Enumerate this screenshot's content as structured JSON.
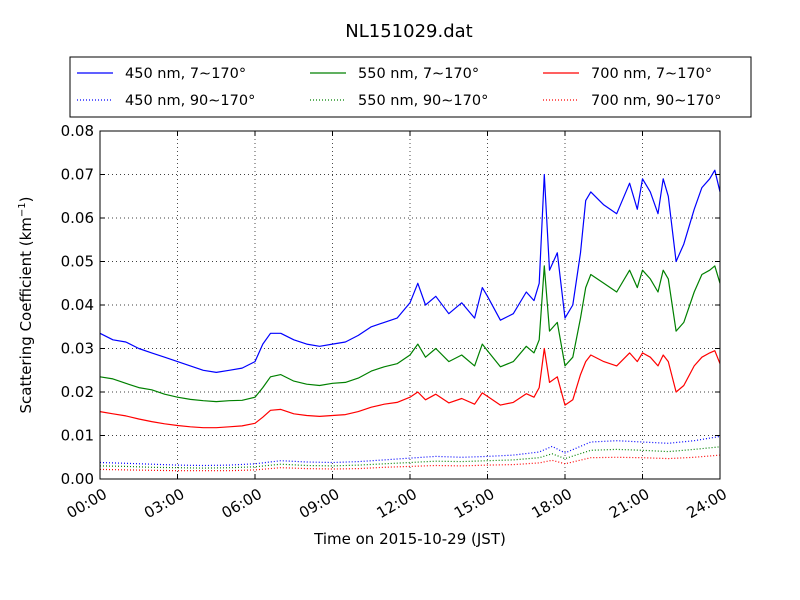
{
  "chart_data": {
    "type": "line",
    "title": "NL151029.dat",
    "xlabel": "Time on 2015-10-29 (JST)",
    "ylabel": "Scattering Coefficient (km",
    "ylabel_superscript": "−1",
    "ylabel_suffix": ")",
    "xlim": [
      0,
      24
    ],
    "ylim": [
      0,
      0.08
    ],
    "x_unit": "hours",
    "x_ticks": [
      0,
      3,
      6,
      9,
      12,
      15,
      18,
      21,
      24
    ],
    "x_tick_labels": [
      "00:00",
      "03:00",
      "06:00",
      "09:00",
      "12:00",
      "15:00",
      "18:00",
      "21:00",
      "24:00"
    ],
    "y_ticks": [
      0,
      0.01,
      0.02,
      0.03,
      0.04,
      0.05,
      0.06,
      0.07,
      0.08
    ],
    "y_tick_labels": [
      "0.00",
      "0.01",
      "0.02",
      "0.03",
      "0.04",
      "0.05",
      "0.06",
      "0.07",
      "0.08"
    ],
    "grid": true,
    "legend_position": "top",
    "series": [
      {
        "name": "450 nm, 7∼170°",
        "color": "#0000ff",
        "style": "solid",
        "x": [
          0,
          0.5,
          1,
          1.5,
          2,
          2.5,
          3,
          3.5,
          4,
          4.5,
          5,
          5.5,
          6,
          6.3,
          6.6,
          7,
          7.5,
          8,
          8.5,
          9,
          9.5,
          10,
          10.5,
          11,
          11.5,
          12,
          12.3,
          12.6,
          13,
          13.5,
          14,
          14.5,
          14.8,
          15,
          15.5,
          16,
          16.5,
          16.8,
          17,
          17.2,
          17.4,
          17.7,
          18,
          18.3,
          18.6,
          18.8,
          19,
          19.5,
          20,
          20.5,
          20.8,
          21,
          21.3,
          21.6,
          21.8,
          22,
          22.3,
          22.6,
          23,
          23.3,
          23.6,
          23.8,
          24
        ],
        "y": [
          0.0335,
          0.032,
          0.0315,
          0.03,
          0.029,
          0.028,
          0.027,
          0.026,
          0.025,
          0.0245,
          0.025,
          0.0255,
          0.027,
          0.031,
          0.0335,
          0.0335,
          0.032,
          0.031,
          0.0305,
          0.031,
          0.0315,
          0.033,
          0.035,
          0.036,
          0.037,
          0.0405,
          0.045,
          0.04,
          0.042,
          0.038,
          0.0405,
          0.037,
          0.044,
          0.042,
          0.0365,
          0.038,
          0.043,
          0.041,
          0.045,
          0.07,
          0.048,
          0.052,
          0.037,
          0.04,
          0.052,
          0.064,
          0.066,
          0.063,
          0.061,
          0.068,
          0.062,
          0.069,
          0.066,
          0.061,
          0.069,
          0.065,
          0.05,
          0.054,
          0.062,
          0.067,
          0.069,
          0.071,
          0.066
        ]
      },
      {
        "name": "550 nm, 7∼170°",
        "color": "#008000",
        "style": "solid",
        "x": [
          0,
          0.5,
          1,
          1.5,
          2,
          2.5,
          3,
          3.5,
          4,
          4.5,
          5,
          5.5,
          6,
          6.3,
          6.6,
          7,
          7.5,
          8,
          8.5,
          9,
          9.5,
          10,
          10.5,
          11,
          11.5,
          12,
          12.3,
          12.6,
          13,
          13.5,
          14,
          14.5,
          14.8,
          15,
          15.5,
          16,
          16.5,
          16.8,
          17,
          17.2,
          17.4,
          17.7,
          18,
          18.3,
          18.6,
          18.8,
          19,
          19.5,
          20,
          20.5,
          20.8,
          21,
          21.3,
          21.6,
          21.8,
          22,
          22.3,
          22.6,
          23,
          23.3,
          23.6,
          23.8,
          24
        ],
        "y": [
          0.0235,
          0.023,
          0.022,
          0.021,
          0.0205,
          0.0195,
          0.0188,
          0.0183,
          0.018,
          0.0178,
          0.018,
          0.0181,
          0.0188,
          0.021,
          0.0235,
          0.024,
          0.0225,
          0.0218,
          0.0215,
          0.022,
          0.0222,
          0.0232,
          0.0248,
          0.0258,
          0.0265,
          0.0285,
          0.031,
          0.028,
          0.03,
          0.027,
          0.0285,
          0.026,
          0.031,
          0.0295,
          0.0258,
          0.027,
          0.0305,
          0.029,
          0.032,
          0.049,
          0.034,
          0.036,
          0.026,
          0.028,
          0.037,
          0.044,
          0.047,
          0.045,
          0.043,
          0.048,
          0.044,
          0.048,
          0.046,
          0.043,
          0.048,
          0.046,
          0.034,
          0.036,
          0.043,
          0.047,
          0.048,
          0.049,
          0.045
        ]
      },
      {
        "name": "700 nm, 7∼170°",
        "color": "#ff0000",
        "style": "solid",
        "x": [
          0,
          0.5,
          1,
          1.5,
          2,
          2.5,
          3,
          3.5,
          4,
          4.5,
          5,
          5.5,
          6,
          6.3,
          6.6,
          7,
          7.5,
          8,
          8.5,
          9,
          9.5,
          10,
          10.5,
          11,
          11.5,
          12,
          12.3,
          12.6,
          13,
          13.5,
          14,
          14.5,
          14.8,
          15,
          15.5,
          16,
          16.5,
          16.8,
          17,
          17.2,
          17.4,
          17.7,
          18,
          18.3,
          18.6,
          18.8,
          19,
          19.5,
          20,
          20.5,
          20.8,
          21,
          21.3,
          21.6,
          21.8,
          22,
          22.3,
          22.6,
          23,
          23.3,
          23.6,
          23.8,
          24
        ],
        "y": [
          0.0155,
          0.015,
          0.0145,
          0.0138,
          0.0132,
          0.0127,
          0.0123,
          0.012,
          0.0118,
          0.0118,
          0.012,
          0.0122,
          0.0128,
          0.0142,
          0.0158,
          0.016,
          0.015,
          0.0146,
          0.0144,
          0.0146,
          0.0148,
          0.0155,
          0.0165,
          0.0172,
          0.0176,
          0.0188,
          0.02,
          0.0182,
          0.0195,
          0.0175,
          0.0185,
          0.0172,
          0.0198,
          0.019,
          0.017,
          0.0176,
          0.0196,
          0.0188,
          0.021,
          0.03,
          0.0222,
          0.0235,
          0.017,
          0.0182,
          0.024,
          0.027,
          0.0285,
          0.027,
          0.026,
          0.029,
          0.027,
          0.029,
          0.028,
          0.026,
          0.0285,
          0.027,
          0.02,
          0.0215,
          0.026,
          0.028,
          0.029,
          0.0295,
          0.0265
        ]
      },
      {
        "name": "450 nm, 90∼170°",
        "color": "#0000ff",
        "style": "dotted",
        "x": [
          0,
          1,
          2,
          3,
          4,
          5,
          6,
          7,
          8,
          9,
          10,
          11,
          12,
          13,
          14,
          15,
          16,
          17,
          17.5,
          18,
          19,
          20,
          21,
          22,
          23,
          24
        ],
        "y": [
          0.0038,
          0.0036,
          0.0034,
          0.0032,
          0.0031,
          0.0032,
          0.0035,
          0.0042,
          0.0039,
          0.0038,
          0.004,
          0.0044,
          0.0048,
          0.0052,
          0.005,
          0.0052,
          0.0055,
          0.0062,
          0.0075,
          0.006,
          0.0085,
          0.0088,
          0.0085,
          0.0082,
          0.0088,
          0.0098
        ]
      },
      {
        "name": "550 nm, 90∼170°",
        "color": "#008000",
        "style": "dotted",
        "x": [
          0,
          1,
          2,
          3,
          4,
          5,
          6,
          7,
          8,
          9,
          10,
          11,
          12,
          13,
          14,
          15,
          16,
          17,
          17.5,
          18,
          19,
          20,
          21,
          22,
          23,
          24
        ],
        "y": [
          0.003,
          0.0029,
          0.0027,
          0.0026,
          0.0025,
          0.0026,
          0.0028,
          0.0034,
          0.0031,
          0.003,
          0.0032,
          0.0035,
          0.0038,
          0.0041,
          0.004,
          0.0042,
          0.0044,
          0.0049,
          0.0058,
          0.0047,
          0.0066,
          0.0068,
          0.0066,
          0.0063,
          0.0068,
          0.0074
        ]
      },
      {
        "name": "700 nm, 90∼170°",
        "color": "#ff0000",
        "style": "dotted",
        "x": [
          0,
          1,
          2,
          3,
          4,
          5,
          6,
          7,
          8,
          9,
          10,
          11,
          12,
          13,
          14,
          15,
          16,
          17,
          17.5,
          18,
          19,
          20,
          21,
          22,
          23,
          24
        ],
        "y": [
          0.0022,
          0.0021,
          0.002,
          0.0019,
          0.0019,
          0.0019,
          0.0021,
          0.0026,
          0.0024,
          0.0023,
          0.0024,
          0.0027,
          0.0029,
          0.0031,
          0.003,
          0.0032,
          0.0033,
          0.0037,
          0.0043,
          0.0035,
          0.0049,
          0.005,
          0.0049,
          0.0047,
          0.005,
          0.0055
        ]
      }
    ],
    "legend_order": [
      0,
      1,
      2,
      3,
      4,
      5
    ]
  }
}
